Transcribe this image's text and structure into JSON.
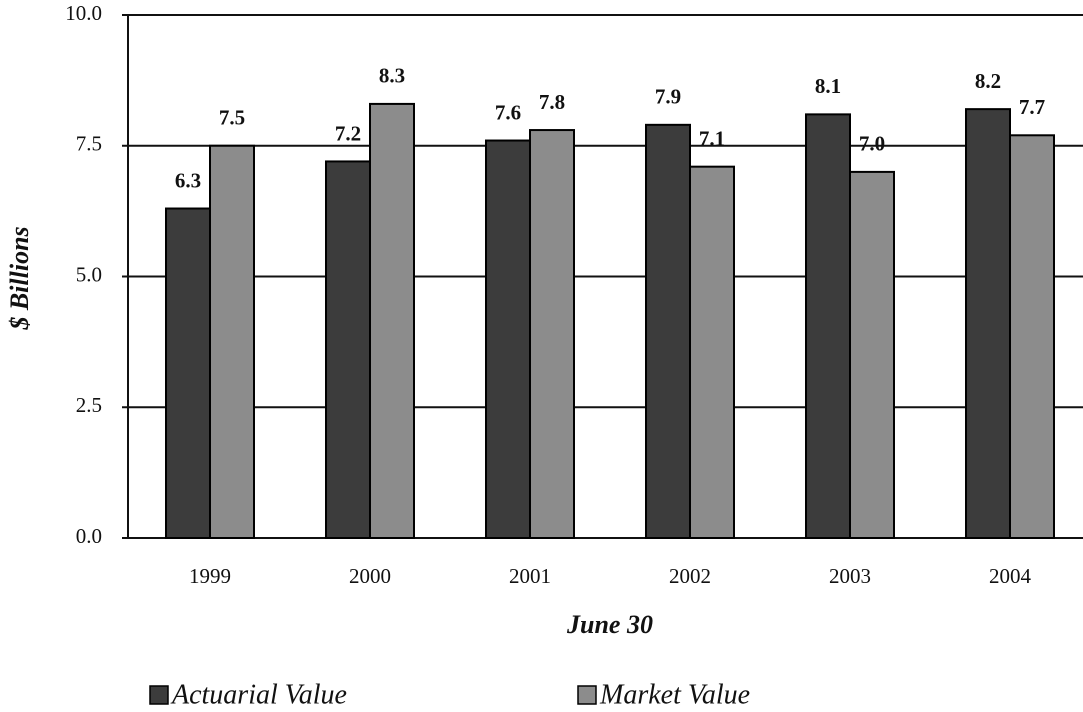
{
  "chart_data": {
    "type": "bar",
    "categories": [
      "1999",
      "2000",
      "2001",
      "2002",
      "2003",
      "2004"
    ],
    "series": [
      {
        "name": "Actuarial Value",
        "color": "#3c3c3c",
        "values": [
          6.3,
          7.2,
          7.6,
          7.9,
          8.1,
          8.2
        ],
        "value_labels": [
          "6.3",
          "7.2",
          "7.6",
          "7.9",
          "8.1",
          "8.2"
        ]
      },
      {
        "name": "Market Value",
        "color": "#8c8c8c",
        "values": [
          7.5,
          8.3,
          7.8,
          7.1,
          7.0,
          7.7
        ],
        "value_labels": [
          "7.5",
          "8.3",
          "7.8",
          "7.1",
          "7.0",
          "7.7"
        ]
      }
    ],
    "x_label": "June 30",
    "y_label": "$ Billions",
    "ylim": [
      0,
      10
    ],
    "yticks": [
      {
        "value": 0,
        "label": "0.0"
      },
      2.5,
      {
        "value": 5,
        "label": "5.0"
      },
      7.5,
      {
        "value": 10,
        "label": "10.0"
      }
    ],
    "grid": true,
    "legend": "bottom"
  }
}
